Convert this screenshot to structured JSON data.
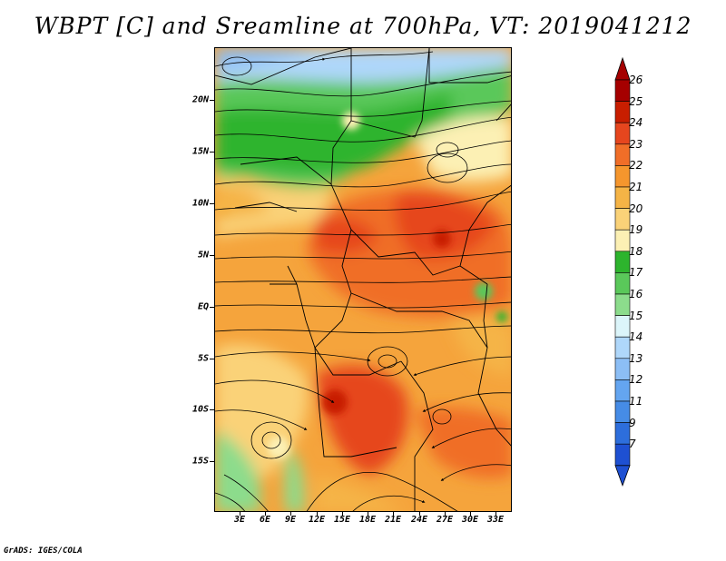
{
  "title": "WBPT [C] and Sreamline at 700hPa, VT: 2019041212",
  "footer": "GrADS: IGES/COLA",
  "map": {
    "region": "Central and East Africa",
    "variables": [
      "wet-bulb potential temperature",
      "streamlines"
    ],
    "level": "700hPa",
    "valid_time": "2019041212"
  },
  "lat_labels": [
    "20N",
    "15N",
    "10N",
    "5N",
    "EQ",
    "5S",
    "10S",
    "15S"
  ],
  "lon_labels": [
    "3E",
    "6E",
    "9E",
    "12E",
    "15E",
    "18E",
    "21E",
    "24E",
    "27E",
    "30E",
    "33E"
  ],
  "colorbar": {
    "labels": [
      "26",
      "25",
      "24",
      "23",
      "22",
      "21",
      "20",
      "19",
      "18",
      "17",
      "16",
      "15",
      "14",
      "13",
      "12",
      "11",
      "9",
      "7"
    ],
    "colors": [
      "#a50000",
      "#c81e00",
      "#e6461e",
      "#f06e28",
      "#f5962d",
      "#f5b446",
      "#fad278",
      "#fcf0b4",
      "#2db42d",
      "#5ac85a",
      "#8cdc8c",
      "#dcf5fa",
      "#afd7fa",
      "#8cbef5",
      "#64a5f0",
      "#468ce6",
      "#2d6edc",
      "#1e50d2"
    ],
    "top_arrow_color": "#a50000",
    "bottom_arrow_color": "#1e50d2"
  }
}
